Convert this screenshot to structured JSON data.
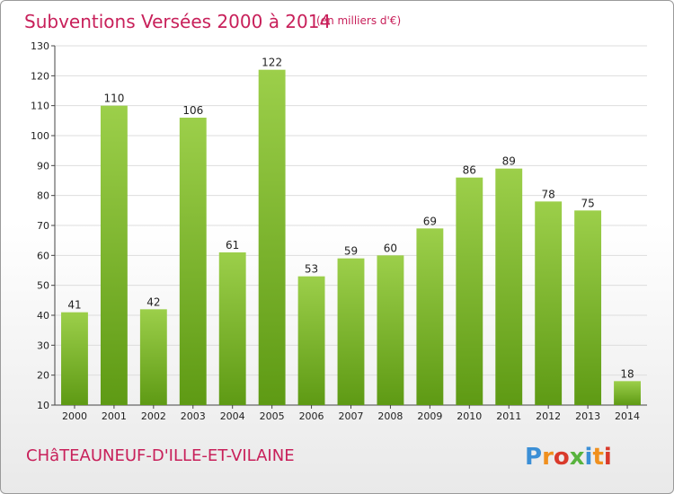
{
  "header": {
    "title": "Subventions Versées 2000 à 2014",
    "unit": "(en milliers d'€)"
  },
  "footer": {
    "town": "CHâTEAUNEUF-D'ILLE-ET-VILAINE",
    "logo_text": "Proxiti",
    "logo_colors": [
      "#3b8fd6",
      "#f0901e",
      "#d93a2b",
      "#58b33e",
      "#3b8fd6",
      "#f0901e",
      "#d93a2b"
    ]
  },
  "colors": {
    "bar_top": "#9ccf4a",
    "bar_bottom": "#5e9a14",
    "accent": "#c8205a",
    "grid": "#dddddd",
    "axis": "#444444"
  },
  "chart_data": {
    "type": "bar",
    "title": "Subventions Versées 2000 à 2014",
    "subtitle": "(en milliers d'€)",
    "categories": [
      "2000",
      "2001",
      "2002",
      "2003",
      "2004",
      "2005",
      "2006",
      "2007",
      "2008",
      "2009",
      "2010",
      "2011",
      "2012",
      "2013",
      "2014"
    ],
    "values": [
      41,
      110,
      42,
      106,
      61,
      122,
      53,
      59,
      60,
      69,
      86,
      89,
      78,
      75,
      18
    ],
    "ylim": [
      10,
      130
    ],
    "yticks": [
      10,
      20,
      30,
      40,
      50,
      60,
      70,
      80,
      90,
      100,
      110,
      120,
      130
    ],
    "grid": true,
    "data_labels": true
  }
}
